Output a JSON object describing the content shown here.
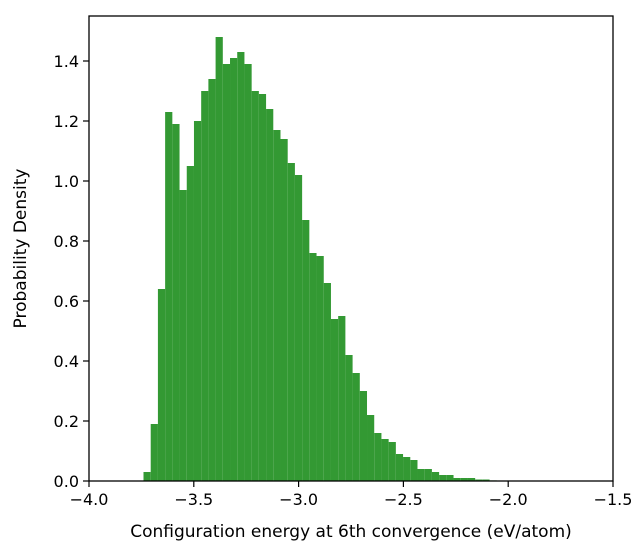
{
  "chart_data": {
    "type": "bar",
    "title": "",
    "xlabel": "Configuration energy at 6th convergence (eV/atom)",
    "ylabel": "Probability Density",
    "xlim": [
      -4.0,
      -1.5
    ],
    "ylim": [
      0.0,
      1.55
    ],
    "xticks": [
      {
        "value": -4.0,
        "label": "−4.0"
      },
      {
        "value": -3.5,
        "label": "−3.5"
      },
      {
        "value": -3.0,
        "label": "−3.0"
      },
      {
        "value": -2.5,
        "label": "−2.5"
      },
      {
        "value": -2.0,
        "label": "−2.0"
      },
      {
        "value": -1.5,
        "label": "−1.5"
      }
    ],
    "yticks": [
      {
        "value": 0.0,
        "label": "0.0"
      },
      {
        "value": 0.2,
        "label": "0.2"
      },
      {
        "value": 0.4,
        "label": "0.4"
      },
      {
        "value": 0.6,
        "label": "0.6"
      },
      {
        "value": 0.8,
        "label": "0.8"
      },
      {
        "value": 1.0,
        "label": "1.0"
      },
      {
        "value": 1.2,
        "label": "1.2"
      },
      {
        "value": 1.4,
        "label": "1.4"
      }
    ],
    "bar_color": "#339933",
    "bin_start": -3.74,
    "bin_width": 0.0344,
    "values": [
      0.03,
      0.19,
      0.64,
      1.23,
      1.19,
      0.97,
      1.05,
      1.2,
      1.3,
      1.34,
      1.48,
      1.39,
      1.41,
      1.43,
      1.39,
      1.3,
      1.29,
      1.24,
      1.17,
      1.14,
      1.06,
      1.02,
      0.87,
      0.76,
      0.75,
      0.66,
      0.54,
      0.55,
      0.42,
      0.36,
      0.3,
      0.22,
      0.16,
      0.14,
      0.13,
      0.09,
      0.08,
      0.07,
      0.04,
      0.04,
      0.03,
      0.02,
      0.02,
      0.01,
      0.01,
      0.01,
      0.005,
      0.005,
      0.002,
      0.001
    ]
  }
}
